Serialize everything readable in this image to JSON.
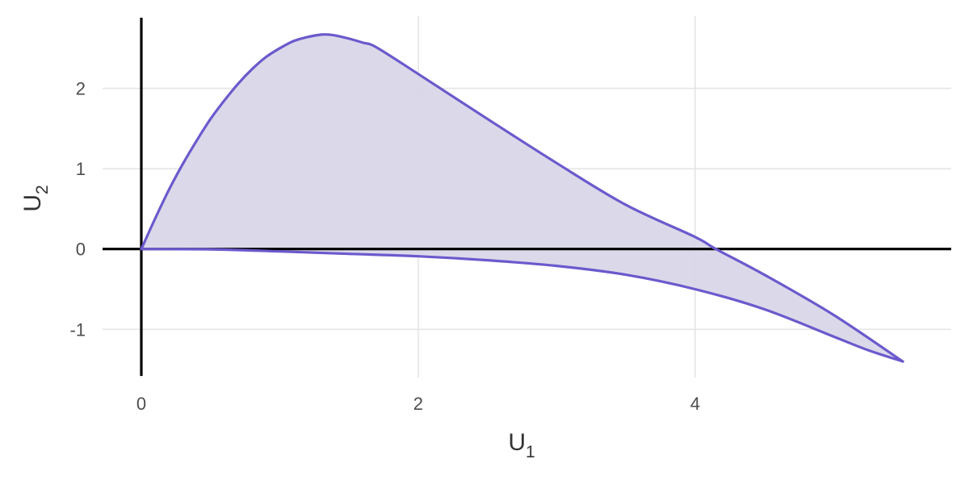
{
  "chart_data": {
    "type": "area",
    "title": "",
    "xlabel": {
      "base": "U",
      "subscript": "1"
    },
    "ylabel": {
      "base": "U",
      "subscript": "2"
    },
    "xlim": [
      -0.28,
      5.85
    ],
    "ylim": [
      -1.6,
      2.9
    ],
    "x_ticks": [
      0,
      2,
      4
    ],
    "y_ticks": [
      -1,
      0,
      1,
      2
    ],
    "grid": true,
    "zero_lines": true,
    "colors": {
      "line": "#6a5acd",
      "fill": "#d9d7e8",
      "grid": "#e5e5e5",
      "axis": "#000000"
    },
    "series": [
      {
        "role": "upper-boundary",
        "x": [
          0,
          0.1,
          0.2,
          0.3,
          0.4,
          0.5,
          0.6,
          0.7,
          0.8,
          0.9,
          1.0,
          1.1,
          1.2,
          1.3,
          1.35,
          1.4,
          1.5,
          1.6,
          1.7,
          2.0,
          2.5,
          3.0,
          3.5,
          4.0,
          4.15,
          4.5,
          5.0,
          5.5
        ],
        "y": [
          0,
          0.38,
          0.74,
          1.06,
          1.35,
          1.62,
          1.85,
          2.06,
          2.24,
          2.39,
          2.5,
          2.59,
          2.64,
          2.67,
          2.67,
          2.66,
          2.62,
          2.57,
          2.51,
          2.18,
          1.62,
          1.07,
          0.55,
          0.15,
          0.0,
          -0.32,
          -0.82,
          -1.4
        ]
      },
      {
        "role": "lower-boundary",
        "x": [
          0,
          0.5,
          1.0,
          1.5,
          2.0,
          2.5,
          3.0,
          3.5,
          4.0,
          4.5,
          5.0,
          5.25,
          5.5
        ],
        "y": [
          0,
          -0.004,
          -0.03,
          -0.06,
          -0.09,
          -0.14,
          -0.21,
          -0.32,
          -0.5,
          -0.75,
          -1.09,
          -1.26,
          -1.4
        ]
      }
    ]
  }
}
